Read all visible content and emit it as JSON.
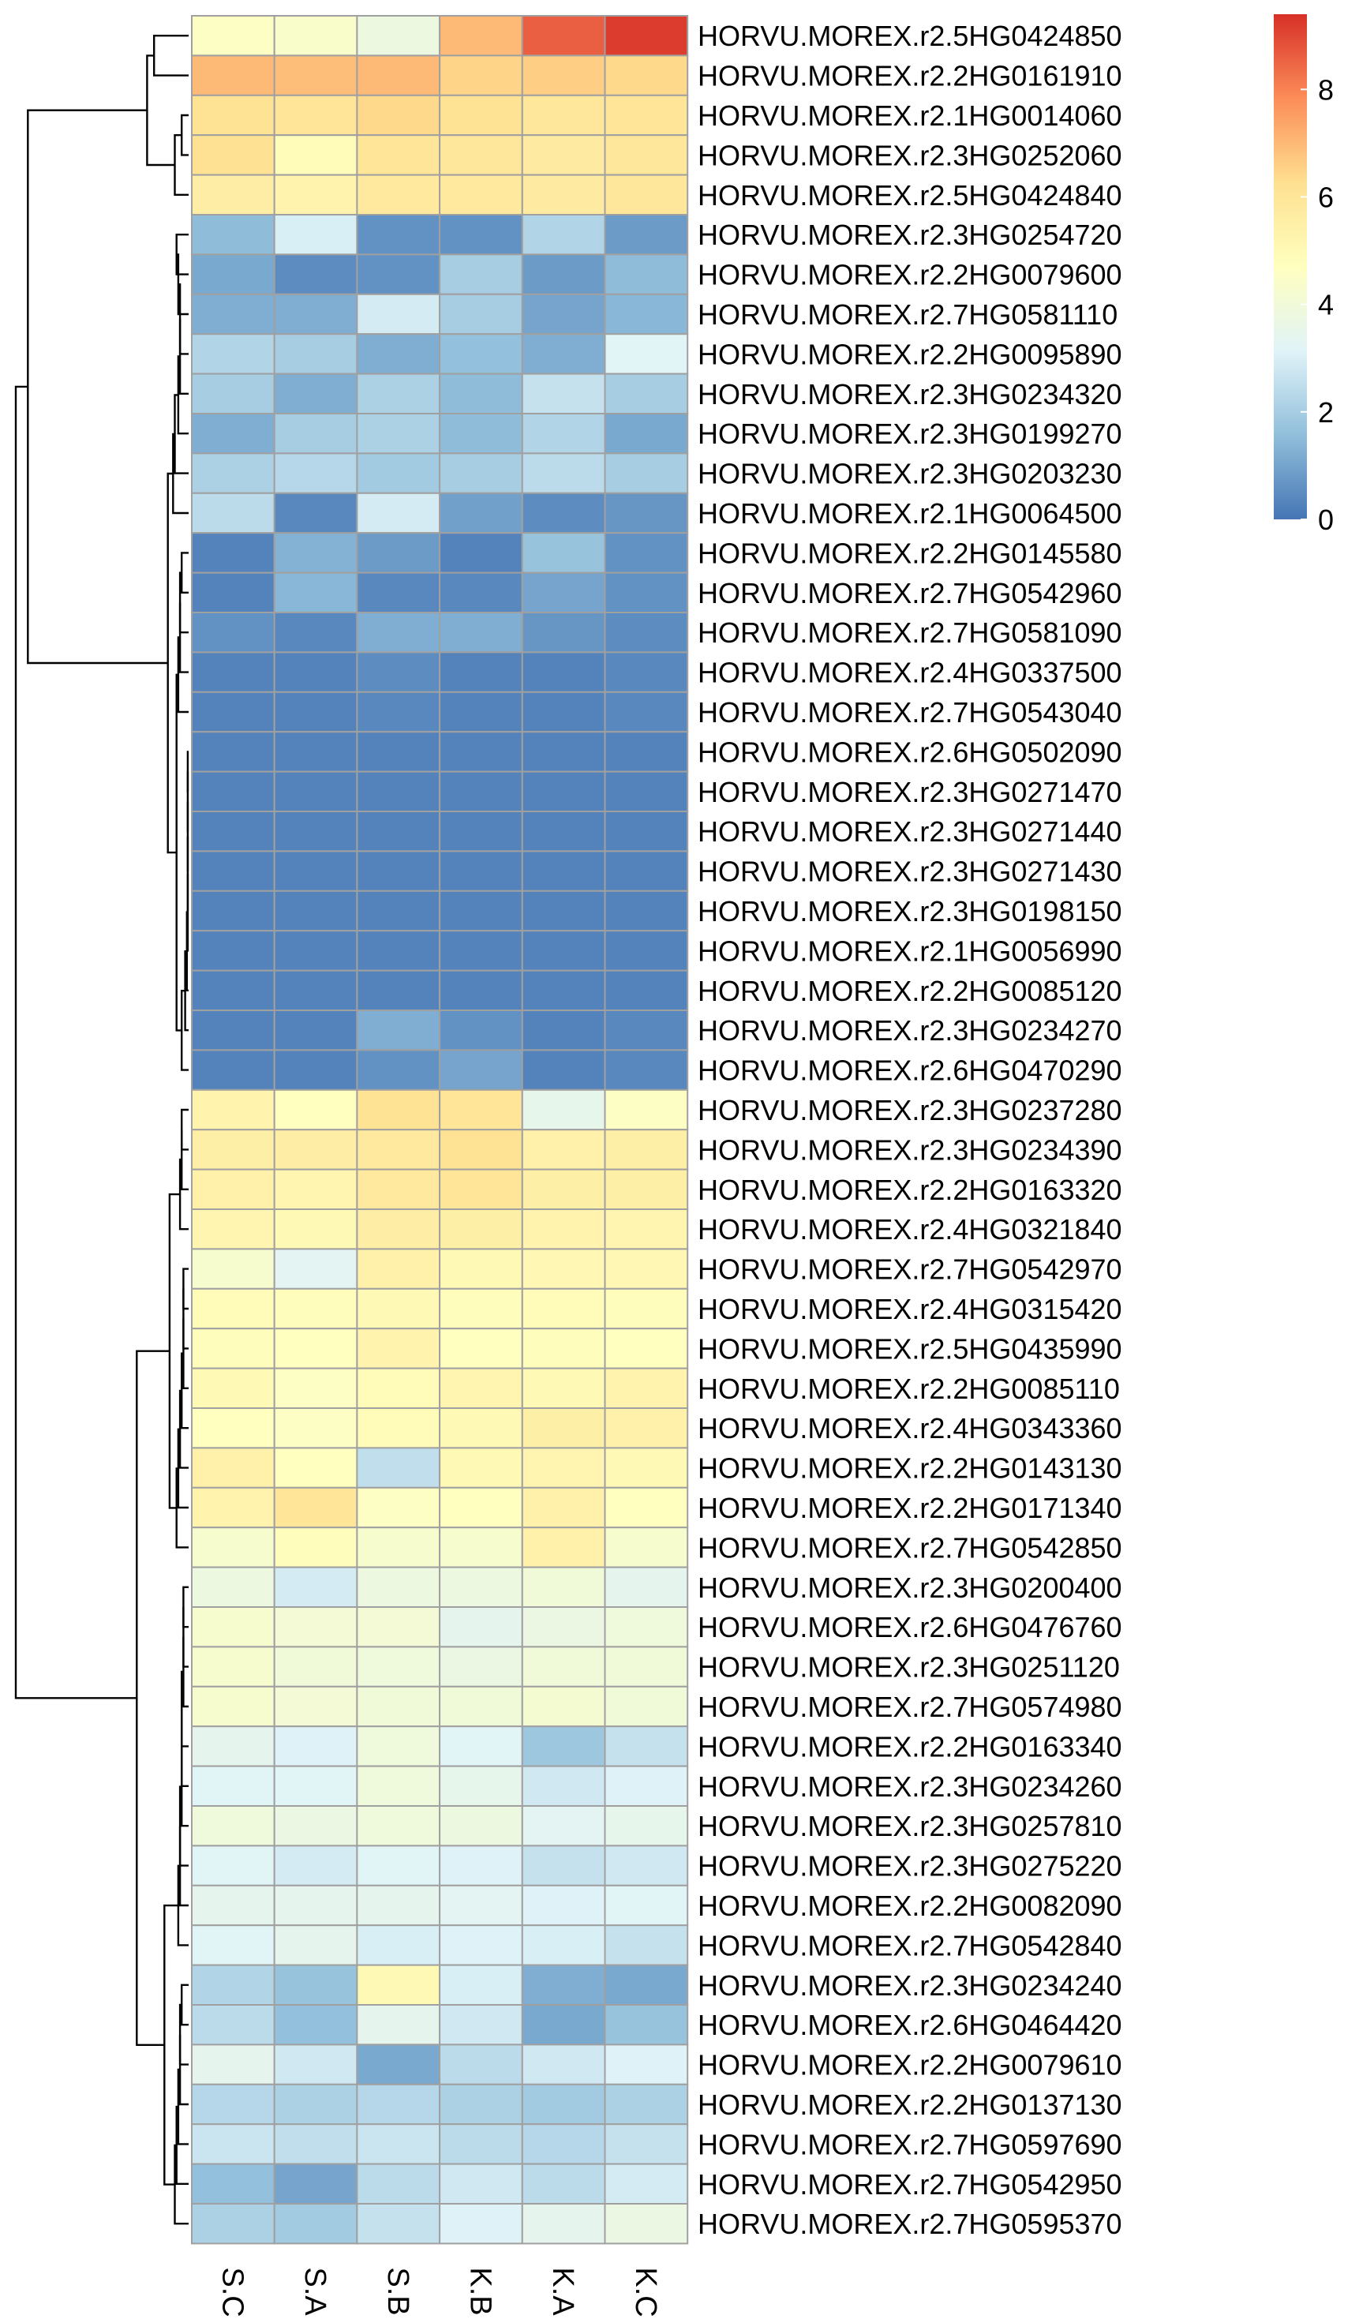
{
  "chart_data": {
    "type": "heatmap",
    "columns": [
      "S.C",
      "S.A",
      "S.B",
      "K.B",
      "K.A",
      "K.C"
    ],
    "rows": [
      "HORVU.MOREX.r2.5HG0424850",
      "HORVU.MOREX.r2.2HG0161910",
      "HORVU.MOREX.r2.1HG0014060",
      "HORVU.MOREX.r2.3HG0252060",
      "HORVU.MOREX.r2.5HG0424840",
      "HORVU.MOREX.r2.3HG0254720",
      "HORVU.MOREX.r2.2HG0079600",
      "HORVU.MOREX.r2.7HG0581110",
      "HORVU.MOREX.r2.2HG0095890",
      "HORVU.MOREX.r2.3HG0234320",
      "HORVU.MOREX.r2.3HG0199270",
      "HORVU.MOREX.r2.3HG0203230",
      "HORVU.MOREX.r2.1HG0064500",
      "HORVU.MOREX.r2.2HG0145580",
      "HORVU.MOREX.r2.7HG0542960",
      "HORVU.MOREX.r2.7HG0581090",
      "HORVU.MOREX.r2.4HG0337500",
      "HORVU.MOREX.r2.7HG0543040",
      "HORVU.MOREX.r2.6HG0502090",
      "HORVU.MOREX.r2.3HG0271470",
      "HORVU.MOREX.r2.3HG0271440",
      "HORVU.MOREX.r2.3HG0271430",
      "HORVU.MOREX.r2.3HG0198150",
      "HORVU.MOREX.r2.1HG0056990",
      "HORVU.MOREX.r2.2HG0085120",
      "HORVU.MOREX.r2.3HG0234270",
      "HORVU.MOREX.r2.6HG0470290",
      "HORVU.MOREX.r2.3HG0237280",
      "HORVU.MOREX.r2.3HG0234390",
      "HORVU.MOREX.r2.2HG0163320",
      "HORVU.MOREX.r2.4HG0321840",
      "HORVU.MOREX.r2.7HG0542970",
      "HORVU.MOREX.r2.4HG0315420",
      "HORVU.MOREX.r2.5HG0435990",
      "HORVU.MOREX.r2.2HG0085110",
      "HORVU.MOREX.r2.4HG0343360",
      "HORVU.MOREX.r2.2HG0143130",
      "HORVU.MOREX.r2.2HG0171340",
      "HORVU.MOREX.r2.7HG0542850",
      "HORVU.MOREX.r2.3HG0200400",
      "HORVU.MOREX.r2.6HG0476760",
      "HORVU.MOREX.r2.3HG0251120",
      "HORVU.MOREX.r2.7HG0574980",
      "HORVU.MOREX.r2.2HG0163340",
      "HORVU.MOREX.r2.3HG0234260",
      "HORVU.MOREX.r2.3HG0257810",
      "HORVU.MOREX.r2.3HG0275220",
      "HORVU.MOREX.r2.2HG0082090",
      "HORVU.MOREX.r2.7HG0542840",
      "HORVU.MOREX.r2.3HG0234240",
      "HORVU.MOREX.r2.6HG0464420",
      "HORVU.MOREX.r2.2HG0079610",
      "HORVU.MOREX.r2.2HG0137130",
      "HORVU.MOREX.r2.7HG0597690",
      "HORVU.MOREX.r2.7HG0542950",
      "HORVU.MOREX.r2.7HG0595370"
    ],
    "values": [
      [
        4.6,
        4.4,
        3.8,
        7.0,
        8.6,
        9.2
      ],
      [
        7.0,
        6.9,
        7.0,
        6.5,
        6.6,
        6.4
      ],
      [
        6.1,
        6.0,
        6.4,
        6.1,
        5.9,
        6.0
      ],
      [
        6.2,
        4.9,
        6.0,
        5.9,
        5.7,
        5.9
      ],
      [
        5.6,
        5.3,
        5.8,
        5.8,
        5.7,
        5.9
      ],
      [
        1.5,
        3.0,
        0.6,
        0.6,
        2.2,
        0.8
      ],
      [
        1.1,
        0.5,
        0.6,
        2.0,
        0.8,
        1.5
      ],
      [
        1.2,
        1.2,
        2.9,
        2.0,
        1.0,
        1.4
      ],
      [
        2.2,
        2.0,
        1.2,
        1.6,
        1.2,
        3.2
      ],
      [
        2.0,
        1.2,
        2.1,
        1.5,
        2.6,
        2.0
      ],
      [
        1.2,
        2.0,
        2.1,
        1.5,
        2.2,
        1.1
      ],
      [
        2.1,
        2.3,
        1.9,
        2.0,
        2.4,
        2.0
      ],
      [
        2.4,
        0.4,
        2.9,
        0.9,
        0.5,
        0.7
      ],
      [
        0.3,
        1.3,
        0.8,
        0.3,
        1.7,
        0.6
      ],
      [
        0.3,
        1.4,
        0.4,
        0.4,
        1.0,
        0.6
      ],
      [
        0.6,
        0.4,
        1.2,
        1.2,
        0.7,
        0.5
      ],
      [
        0.3,
        0.3,
        0.5,
        0.3,
        0.3,
        0.4
      ],
      [
        0.3,
        0.3,
        0.4,
        0.3,
        0.3,
        0.4
      ],
      [
        0.3,
        0.3,
        0.3,
        0.3,
        0.3,
        0.3
      ],
      [
        0.3,
        0.3,
        0.3,
        0.3,
        0.3,
        0.3
      ],
      [
        0.3,
        0.3,
        0.3,
        0.3,
        0.3,
        0.3
      ],
      [
        0.3,
        0.3,
        0.3,
        0.3,
        0.3,
        0.3
      ],
      [
        0.3,
        0.3,
        0.3,
        0.3,
        0.3,
        0.3
      ],
      [
        0.3,
        0.3,
        0.3,
        0.3,
        0.3,
        0.3
      ],
      [
        0.3,
        0.3,
        0.3,
        0.3,
        0.3,
        0.3
      ],
      [
        0.3,
        0.3,
        1.2,
        0.6,
        0.3,
        0.4
      ],
      [
        0.3,
        0.3,
        0.6,
        1.0,
        0.3,
        0.4
      ],
      [
        5.3,
        4.7,
        6.1,
        6.0,
        3.5,
        4.6
      ],
      [
        5.5,
        5.6,
        5.8,
        6.1,
        5.4,
        5.5
      ],
      [
        5.4,
        5.2,
        5.8,
        6.0,
        5.5,
        5.5
      ],
      [
        5.2,
        5.0,
        5.6,
        5.5,
        5.3,
        5.2
      ],
      [
        4.3,
        3.3,
        5.4,
        5.0,
        5.1,
        5.1
      ],
      [
        4.9,
        4.8,
        5.0,
        4.8,
        4.9,
        4.8
      ],
      [
        4.8,
        4.7,
        5.3,
        4.7,
        4.8,
        4.7
      ],
      [
        5.0,
        4.6,
        4.9,
        5.2,
        5.0,
        5.3
      ],
      [
        4.7,
        4.6,
        4.9,
        5.0,
        5.5,
        5.4
      ],
      [
        5.4,
        4.7,
        2.5,
        5.0,
        5.2,
        5.0
      ],
      [
        5.3,
        6.0,
        4.6,
        4.7,
        5.4,
        4.7
      ],
      [
        4.3,
        4.8,
        4.3,
        4.3,
        5.4,
        4.3
      ],
      [
        3.8,
        2.9,
        3.8,
        3.8,
        4.0,
        3.4
      ],
      [
        4.3,
        4.1,
        4.1,
        3.4,
        3.7,
        3.9
      ],
      [
        4.3,
        4.0,
        3.9,
        3.7,
        4.0,
        4.0
      ],
      [
        4.3,
        4.1,
        4.0,
        4.0,
        4.2,
        4.0
      ],
      [
        3.4,
        3.1,
        3.9,
        3.2,
        1.8,
        2.6
      ],
      [
        3.2,
        3.2,
        3.9,
        3.5,
        2.8,
        3.1
      ],
      [
        3.9,
        3.7,
        3.9,
        3.8,
        3.3,
        3.5
      ],
      [
        3.2,
        2.9,
        3.2,
        3.1,
        2.6,
        2.8
      ],
      [
        3.4,
        3.4,
        3.4,
        3.3,
        3.1,
        3.2
      ],
      [
        3.2,
        3.4,
        3.0,
        3.1,
        3.0,
        2.6
      ],
      [
        2.2,
        1.7,
        5.0,
        3.0,
        1.2,
        1.1
      ],
      [
        2.4,
        1.6,
        3.4,
        2.8,
        1.1,
        1.7
      ],
      [
        3.4,
        2.8,
        1.1,
        2.4,
        2.8,
        3.1
      ],
      [
        2.3,
        2.1,
        2.3,
        2.1,
        1.9,
        2.1
      ],
      [
        2.7,
        2.5,
        2.7,
        2.4,
        2.3,
        2.6
      ],
      [
        1.6,
        1.0,
        2.4,
        2.8,
        2.4,
        2.9
      ],
      [
        2.1,
        1.9,
        2.6,
        3.1,
        3.4,
        3.7
      ]
    ],
    "legend": {
      "position": "top-right",
      "ticks": [
        0,
        2,
        4,
        6,
        8
      ],
      "range": [
        0,
        9.4
      ],
      "colors": [
        "#4575b4",
        "#91bfdb",
        "#e0f3f8",
        "#ffffbf",
        "#fee090",
        "#fc8d59",
        "#d73027"
      ]
    },
    "cell_border_color": "#a0a0a0",
    "dendrogram": "rows",
    "row_order": [
      "HORVU.MOREX.r2.5HG0424850",
      "HORVU.MOREX.r2.2HG0161910",
      "HORVU.MOREX.r2.1HG0014060",
      "HORVU.MOREX.r2.3HG0252060",
      "HORVU.MOREX.r2.5HG0424840",
      "HORVU.MOREX.r2.3HG0254720",
      "HORVU.MOREX.r2.2HG0079600",
      "HORVU.MOREX.r2.7HG0581110",
      "HORVU.MOREX.r2.2HG0095890",
      "HORVU.MOREX.r2.3HG0234320",
      "HORVU.MOREX.r2.3HG0199270",
      "HORVU.MOREX.r2.3HG0203230",
      "HORVU.MOREX.r2.1HG0064500",
      "HORVU.MOREX.r2.2HG0145580",
      "HORVU.MOREX.r2.7HG0542960",
      "HORVU.MOREX.r2.7HG0581090",
      "HORVU.MOREX.r2.4HG0337500",
      "HORVU.MOREX.r2.7HG0543040",
      "HORVU.MOREX.r2.6HG0502090",
      "HORVU.MOREX.r2.3HG0271470",
      "HORVU.MOREX.r2.3HG0271440",
      "HORVU.MOREX.r2.3HG0271430",
      "HORVU.MOREX.r2.3HG0198150",
      "HORVU.MOREX.r2.1HG0056990",
      "HORVU.MOREX.r2.2HG0085120",
      "HORVU.MOREX.r2.3HG0234270",
      "HORVU.MOREX.r2.6HG0470290",
      "HORVU.MOREX.r2.3HG0237280",
      "HORVU.MOREX.r2.3HG0234390",
      "HORVU.MOREX.r2.2HG0163320",
      "HORVU.MOREX.r2.4HG0321840",
      "HORVU.MOREX.r2.7HG0542970",
      "HORVU.MOREX.r2.4HG0315420",
      "HORVU.MOREX.r2.5HG0435990",
      "HORVU.MOREX.r2.2HG0085110",
      "HORVU.MOREX.r2.4HG0343360",
      "HORVU.MOREX.r2.2HG0143130",
      "HORVU.MOREX.r2.2HG0171340",
      "HORVU.MOREX.r2.7HG0542850",
      "HORVU.MOREX.r2.3HG0200400",
      "HORVU.MOREX.r2.6HG0476760",
      "HORVU.MOREX.r2.3HG0251120",
      "HORVU.MOREX.r2.7HG0574980",
      "HORVU.MOREX.r2.2HG0163340",
      "HORVU.MOREX.r2.3HG0234260",
      "HORVU.MOREX.r2.3HG0257810",
      "HORVU.MOREX.r2.3HG0275220",
      "HORVU.MOREX.r2.2HG0082090",
      "HORVU.MOREX.r2.7HG0542840",
      "HORVU.MOREX.r2.3HG0234240",
      "HORVU.MOREX.r2.6HG0464420",
      "HORVU.MOREX.r2.2HG0079610",
      "HORVU.MOREX.r2.2HG0137130",
      "HORVU.MOREX.r2.7HG0597690",
      "HORVU.MOREX.r2.7HG0542950",
      "HORVU.MOREX.r2.7HG0595370"
    ]
  }
}
